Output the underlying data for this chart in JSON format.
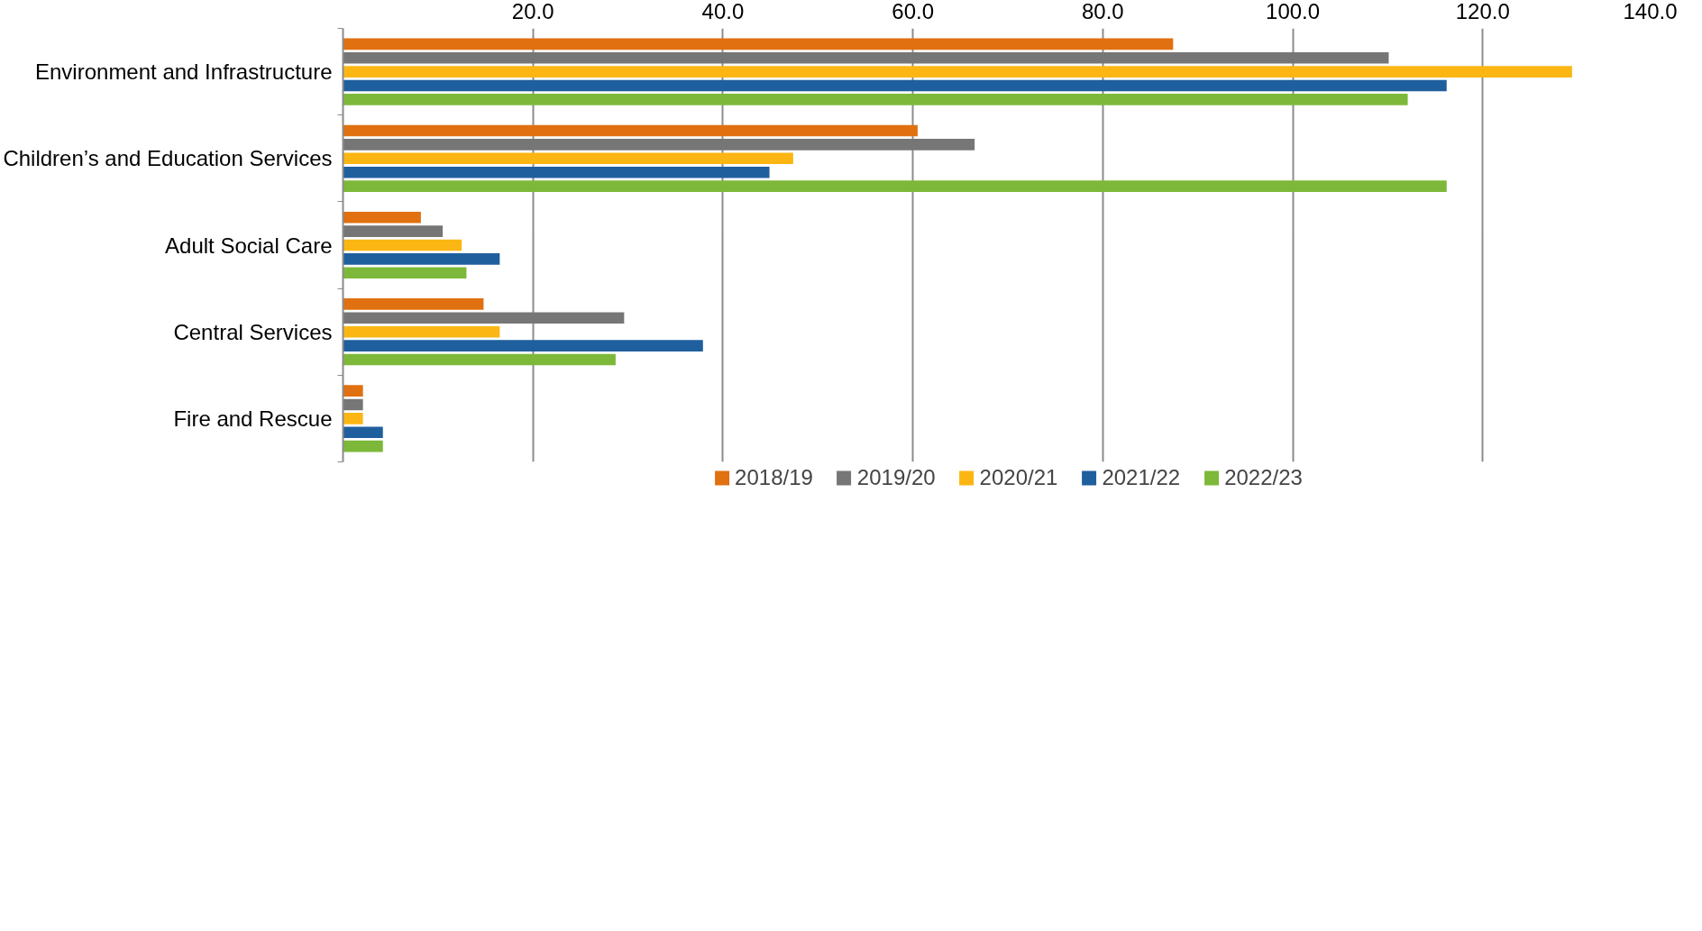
{
  "chart_data": {
    "type": "bar",
    "orientation": "horizontal",
    "categories": [
      "Environment and Infrastructure",
      "Children’s and Education Services",
      "Adult Social Care",
      "Central Services",
      "Fire and Rescue"
    ],
    "series": [
      {
        "name": "2018/19",
        "color": "#e07010",
        "values": [
          87.4,
          60.5,
          8.2,
          14.8,
          2.1
        ]
      },
      {
        "name": "2019/20",
        "color": "#767676",
        "values": [
          110.1,
          66.5,
          10.5,
          29.6,
          2.1
        ]
      },
      {
        "name": "2020/21",
        "color": "#fbb614",
        "values": [
          129.4,
          47.4,
          12.5,
          16.5,
          2.1
        ]
      },
      {
        "name": "2021/22",
        "color": "#1f5f9e",
        "values": [
          116.2,
          44.9,
          16.5,
          37.9,
          4.2
        ]
      },
      {
        "name": "2022/23",
        "color": "#7db83a",
        "values": [
          112.1,
          116.2,
          13.0,
          28.7,
          4.2
        ]
      }
    ],
    "xlim": [
      0,
      140
    ],
    "xticks": [
      {
        "value": 20,
        "label": "20.0"
      },
      {
        "value": 40,
        "label": "40.0"
      },
      {
        "value": 60,
        "label": "60.0"
      },
      {
        "value": 80,
        "label": "80.0"
      },
      {
        "value": 100,
        "label": "100.0"
      },
      {
        "value": 120,
        "label": "120.0"
      },
      {
        "value": 140,
        "label": "140.0"
      }
    ],
    "grid": "x",
    "legend": "bottom"
  }
}
